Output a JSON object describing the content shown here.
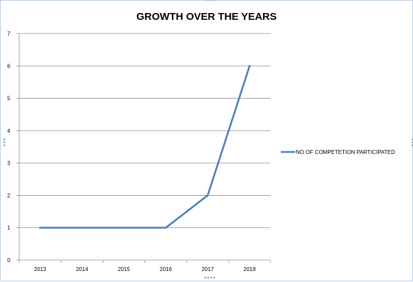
{
  "chart_data": {
    "type": "line",
    "title": "GROWTH OVER THE YEARS",
    "categories": [
      "2013",
      "2014",
      "2015",
      "2016",
      "2017",
      "2018"
    ],
    "series": [
      {
        "name": "NO OF COMPETETION  PARTICIPATED",
        "values": [
          1,
          1,
          1,
          1,
          2,
          6
        ],
        "color": "#4a7ebb"
      }
    ],
    "yticks": [
      "0",
      "1",
      "2",
      "3",
      "4",
      "5",
      "6",
      "7"
    ],
    "ylim": [
      0,
      7
    ],
    "grid": true,
    "legend_position": "right"
  }
}
